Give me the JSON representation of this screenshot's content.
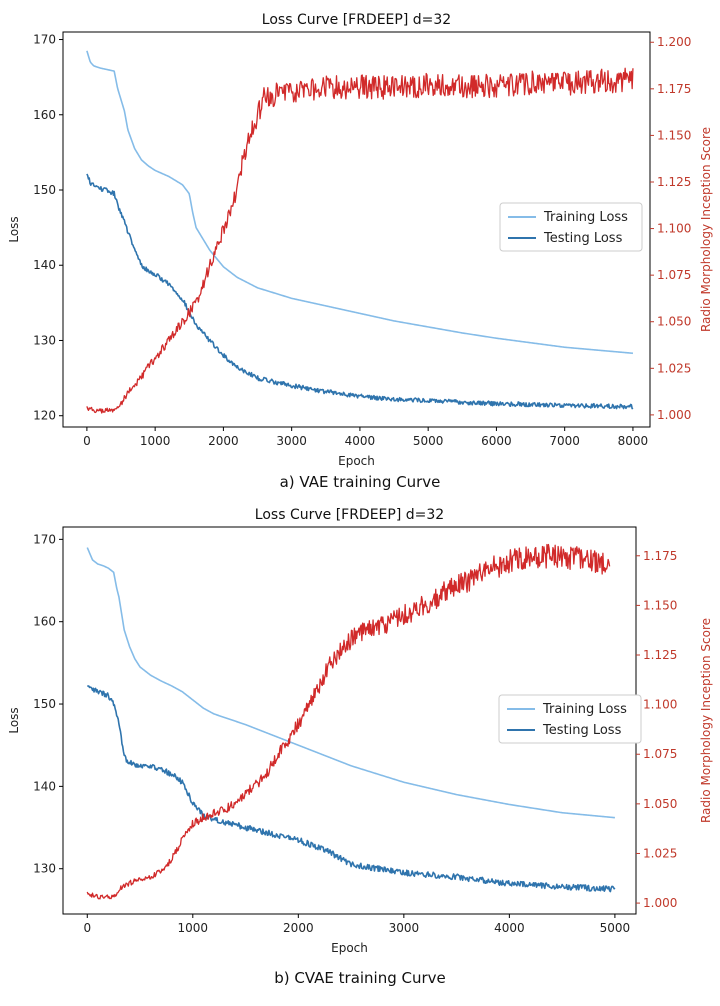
{
  "colors": {
    "training": "#85bce8",
    "testing": "#2f74ad",
    "score": "#d12a2a",
    "right_axis": "#c0392b",
    "frame": "#000000"
  },
  "chart_data": [
    {
      "type": "line",
      "title": "Loss Curve [FRDEEP] d=32",
      "caption": "a) VAE training Curve",
      "xlabel": "Epoch",
      "ylabel": "Loss",
      "y2label": "Radio Morphology Inception Score",
      "xlim": [
        -350,
        8250
      ],
      "ylim": [
        118.5,
        171
      ],
      "y2lim": [
        0.9935,
        1.2055
      ],
      "xticks": [
        0,
        1000,
        2000,
        3000,
        4000,
        5000,
        6000,
        7000,
        8000
      ],
      "yticks": [
        120,
        130,
        140,
        150,
        160,
        170
      ],
      "y2ticks": [
        1.0,
        1.025,
        1.05,
        1.075,
        1.1,
        1.125,
        1.15,
        1.175,
        1.2
      ],
      "xtick_labels": [
        "0",
        "1000",
        "2000",
        "3000",
        "4000",
        "5000",
        "6000",
        "7000",
        "8000"
      ],
      "ytick_labels": [
        "120",
        "130",
        "140",
        "150",
        "160",
        "170"
      ],
      "y2tick_labels": [
        "1.000",
        "1.025",
        "1.050",
        "1.075",
        "1.100",
        "1.125",
        "1.150",
        "1.175",
        "1.200"
      ],
      "legend": {
        "position": "center-right",
        "entries": [
          "Training Loss",
          "Testing Loss"
        ]
      },
      "series": [
        {
          "name": "Training Loss",
          "axis": "left",
          "color_key": "training",
          "x": [
            0,
            50,
            100,
            200,
            300,
            400,
            450,
            500,
            550,
            600,
            700,
            800,
            900,
            1000,
            1200,
            1400,
            1500,
            1550,
            1600,
            1700,
            1800,
            2000,
            2200,
            2500,
            3000,
            3500,
            4000,
            4500,
            5000,
            5500,
            6000,
            6500,
            7000,
            7500,
            8000
          ],
          "values": [
            168.5,
            167.0,
            166.5,
            166.2,
            166.0,
            165.8,
            163.5,
            162.0,
            160.5,
            158.0,
            155.5,
            154.0,
            153.2,
            152.6,
            151.8,
            150.7,
            149.5,
            147.0,
            145.0,
            143.5,
            142.0,
            139.8,
            138.4,
            137.0,
            135.6,
            134.6,
            133.6,
            132.6,
            131.8,
            131.0,
            130.3,
            129.7,
            129.1,
            128.7,
            128.3
          ],
          "noise": 0
        },
        {
          "name": "Testing Loss",
          "axis": "left",
          "color_key": "testing",
          "x": [
            0,
            50,
            100,
            200,
            300,
            400,
            450,
            500,
            600,
            700,
            800,
            900,
            1000,
            1200,
            1400,
            1600,
            1800,
            2000,
            2200,
            2500,
            3000,
            3500,
            4000,
            4500,
            5000,
            5500,
            6000,
            6500,
            7000,
            7500,
            8000
          ],
          "values": [
            152.0,
            151.0,
            150.6,
            150.2,
            149.9,
            149.5,
            148.0,
            147.0,
            144.5,
            142.0,
            140.0,
            139.2,
            138.8,
            137.5,
            135.5,
            132.0,
            130.0,
            128.0,
            126.5,
            125.0,
            124.0,
            123.2,
            122.6,
            122.2,
            122.0,
            121.8,
            121.6,
            121.5,
            121.4,
            121.3,
            121.2
          ],
          "noise": 0.3
        },
        {
          "name": "Radio Morphology Inception Score",
          "axis": "right",
          "color_key": "score",
          "x": [
            0,
            100,
            200,
            300,
            400,
            450,
            500,
            600,
            700,
            800,
            900,
            1000,
            1100,
            1200,
            1300,
            1400,
            1500,
            1600,
            1700,
            1800,
            1900,
            2000,
            2100,
            2200,
            2300,
            2400,
            2500,
            2600,
            2800,
            3000,
            3500,
            4000,
            4500,
            5000,
            5500,
            6000,
            6500,
            7000,
            7500,
            8000
          ],
          "values": [
            1.004,
            1.0025,
            1.002,
            1.0025,
            1.002,
            1.005,
            1.006,
            1.012,
            1.016,
            1.02,
            1.026,
            1.03,
            1.035,
            1.04,
            1.045,
            1.05,
            1.055,
            1.06,
            1.07,
            1.08,
            1.09,
            1.1,
            1.11,
            1.12,
            1.14,
            1.15,
            1.16,
            1.17,
            1.172,
            1.174,
            1.176,
            1.176,
            1.176,
            1.177,
            1.176,
            1.177,
            1.178,
            1.178,
            1.179,
            1.18
          ],
          "noise": 0.004
        }
      ]
    },
    {
      "type": "line",
      "title": "Loss Curve [FRDEEP] d=32",
      "caption": "b) CVAE training Curve",
      "xlabel": "Epoch",
      "ylabel": "Loss",
      "y2label": "Radio Morphology Inception Score",
      "xlim": [
        -230,
        5200
      ],
      "ylim": [
        124.5,
        171.5
      ],
      "y2lim": [
        0.9945,
        1.1895
      ],
      "xticks": [
        0,
        1000,
        2000,
        3000,
        4000,
        5000
      ],
      "yticks": [
        130,
        140,
        150,
        160,
        170
      ],
      "y2ticks": [
        1.0,
        1.025,
        1.05,
        1.075,
        1.1,
        1.125,
        1.15,
        1.175
      ],
      "xtick_labels": [
        "0",
        "1000",
        "2000",
        "3000",
        "4000",
        "5000"
      ],
      "ytick_labels": [
        "130",
        "140",
        "150",
        "160",
        "170"
      ],
      "y2tick_labels": [
        "1.000",
        "1.025",
        "1.050",
        "1.075",
        "1.100",
        "1.125",
        "1.150",
        "1.175"
      ],
      "legend": {
        "position": "center-right",
        "entries": [
          "Training Loss",
          "Testing Loss"
        ]
      },
      "series": [
        {
          "name": "Training Loss",
          "axis": "left",
          "color_key": "training",
          "x": [
            0,
            50,
            100,
            150,
            200,
            250,
            280,
            300,
            350,
            400,
            450,
            500,
            600,
            700,
            800,
            900,
            1000,
            1100,
            1200,
            1500,
            2000,
            2500,
            3000,
            3500,
            4000,
            4500,
            5000
          ],
          "values": [
            169.0,
            167.5,
            167.0,
            166.8,
            166.5,
            166.0,
            164.0,
            163.0,
            159.0,
            157.0,
            155.5,
            154.5,
            153.5,
            152.8,
            152.2,
            151.5,
            150.5,
            149.5,
            148.8,
            147.5,
            145.0,
            142.5,
            140.5,
            139.0,
            137.8,
            136.8,
            136.2
          ],
          "noise": 0
        },
        {
          "name": "Testing Loss",
          "axis": "left",
          "color_key": "testing",
          "x": [
            0,
            100,
            200,
            250,
            300,
            350,
            400,
            500,
            600,
            700,
            800,
            900,
            1000,
            1100,
            1200,
            1500,
            2000,
            2300,
            2500,
            3000,
            3500,
            4000,
            4500,
            5000
          ],
          "values": [
            152.0,
            151.5,
            151.0,
            150.0,
            147.5,
            143.5,
            143.0,
            142.5,
            142.5,
            142.0,
            141.5,
            140.5,
            138.0,
            136.5,
            136.0,
            135.0,
            133.5,
            132.0,
            130.5,
            129.5,
            129.0,
            128.2,
            127.8,
            127.5
          ],
          "noise": 0.35
        },
        {
          "name": "Radio Morphology Inception Score",
          "axis": "right",
          "color_key": "score",
          "x": [
            0,
            100,
            200,
            250,
            300,
            400,
            500,
            600,
            700,
            800,
            900,
            1000,
            1100,
            1200,
            1300,
            1400,
            1500,
            1600,
            1700,
            1800,
            1900,
            2000,
            2100,
            2200,
            2300,
            2400,
            2500,
            2600,
            2800,
            3000,
            3200,
            3400,
            3600,
            3800,
            4000,
            4200,
            4400,
            4600,
            4800,
            4950
          ],
          "values": [
            1.005,
            1.003,
            1.003,
            1.003,
            1.007,
            1.01,
            1.012,
            1.013,
            1.016,
            1.022,
            1.032,
            1.04,
            1.043,
            1.045,
            1.047,
            1.05,
            1.055,
            1.06,
            1.065,
            1.075,
            1.082,
            1.09,
            1.1,
            1.11,
            1.12,
            1.128,
            1.133,
            1.137,
            1.14,
            1.145,
            1.15,
            1.157,
            1.162,
            1.168,
            1.172,
            1.174,
            1.175,
            1.174,
            1.172,
            1.17
          ],
          "noise": 0.0035
        }
      ]
    }
  ]
}
